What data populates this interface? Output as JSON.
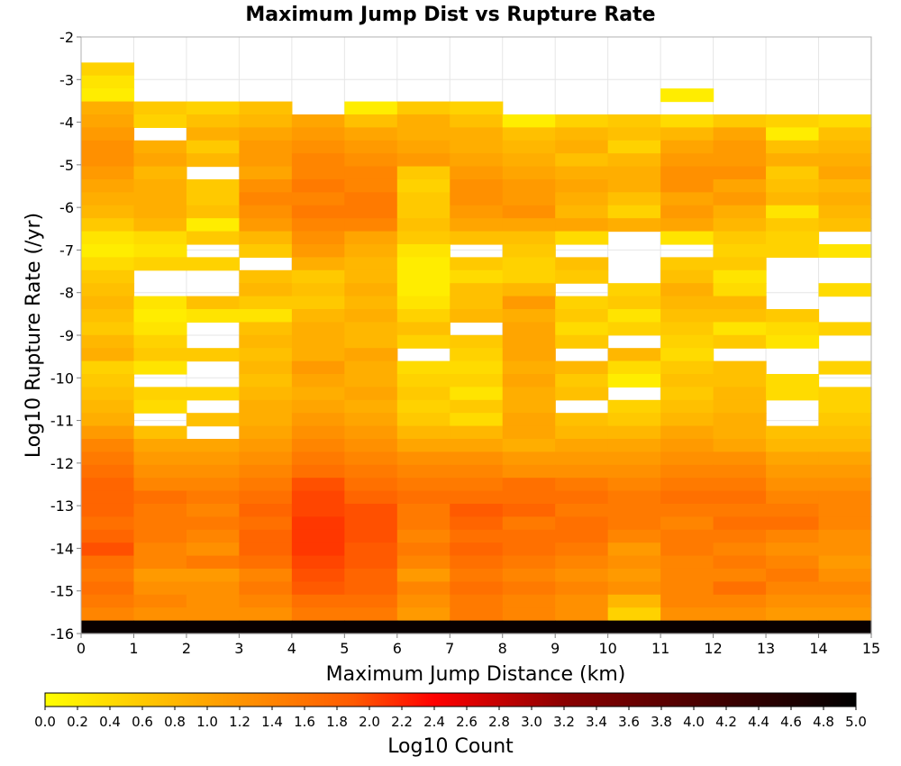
{
  "chart_data": {
    "type": "heatmap",
    "title": "Maximum Jump Dist vs Rupture Rate",
    "xlabel": "Maximum Jump Distance (km)",
    "ylabel": "Log10 Rupture Rate (/yr)",
    "colorbar_label": "Log10 Count",
    "xlim": [
      0,
      15
    ],
    "ylim": [
      -16,
      -2
    ],
    "x_ticks": [
      "0",
      "1",
      "2",
      "3",
      "4",
      "5",
      "6",
      "7",
      "8",
      "9",
      "10",
      "11",
      "12",
      "13",
      "14",
      "15"
    ],
    "y_ticks": [
      "-2",
      "-3",
      "-4",
      "-5",
      "-6",
      "-7",
      "-8",
      "-9",
      "-10",
      "-11",
      "-12",
      "-13",
      "-14",
      "-15",
      "-16"
    ],
    "colorbar_ticks": [
      "0.0",
      "0.2",
      "0.4",
      "0.6",
      "0.8",
      "1.0",
      "1.2",
      "1.4",
      "1.6",
      "1.8",
      "2.0",
      "2.2",
      "2.4",
      "2.6",
      "2.8",
      "3.0",
      "3.2",
      "3.4",
      "3.6",
      "3.8",
      "4.0",
      "4.2",
      "4.4",
      "4.6",
      "4.8",
      "5.0"
    ],
    "colorscale": {
      "min": 0,
      "max": 5,
      "stops": [
        "#ffff00",
        "#ffa500",
        "#ff4500",
        "#ff0000",
        "#8b0000",
        "#000000"
      ]
    },
    "grid": true,
    "x_bin_width": 1,
    "y_bin_height": 0.2857,
    "rows_top_to_bottom_note": "rows ordered from log10 rate -2.6 (top) down to -16 (bottom); null = empty bin",
    "rows": [
      [
        0.5,
        null,
        null,
        null,
        null,
        null,
        null,
        null,
        null,
        null,
        null,
        null,
        null,
        null,
        null
      ],
      [
        0.3,
        null,
        null,
        null,
        null,
        null,
        null,
        null,
        null,
        null,
        null,
        null,
        null,
        null,
        null
      ],
      [
        0.2,
        null,
        null,
        null,
        null,
        null,
        null,
        null,
        null,
        null,
        null,
        0.2,
        null,
        null,
        null
      ],
      [
        0.9,
        0.6,
        0.5,
        0.7,
        null,
        0.2,
        0.6,
        0.5,
        null,
        null,
        null,
        null,
        null,
        null,
        null
      ],
      [
        1.0,
        0.5,
        0.7,
        0.8,
        1.0,
        0.7,
        0.9,
        0.7,
        0.2,
        0.5,
        0.6,
        0.4,
        0.6,
        0.5,
        0.4
      ],
      [
        1.1,
        null,
        0.9,
        1.0,
        1.1,
        1.0,
        0.9,
        0.9,
        0.7,
        0.8,
        0.7,
        0.8,
        1.0,
        0.2,
        0.7
      ],
      [
        1.2,
        0.9,
        0.6,
        1.1,
        1.2,
        1.1,
        1.0,
        0.9,
        0.8,
        0.9,
        0.5,
        1.0,
        1.1,
        0.7,
        0.8
      ],
      [
        1.2,
        1.0,
        0.8,
        1.1,
        1.3,
        1.2,
        1.1,
        1.0,
        0.9,
        0.7,
        0.8,
        1.1,
        1.1,
        0.9,
        0.9
      ],
      [
        1.1,
        0.8,
        null,
        1.0,
        1.3,
        1.3,
        0.6,
        1.1,
        1.0,
        0.9,
        0.9,
        1.2,
        1.2,
        0.6,
        1.0
      ],
      [
        1.0,
        0.9,
        0.6,
        1.2,
        1.4,
        1.3,
        0.5,
        1.2,
        1.1,
        1.0,
        0.9,
        1.2,
        1.0,
        0.7,
        0.8
      ],
      [
        0.9,
        0.9,
        0.6,
        1.3,
        1.3,
        1.4,
        0.6,
        1.2,
        1.1,
        0.9,
        0.7,
        1.0,
        1.1,
        0.8,
        0.9
      ],
      [
        0.8,
        0.9,
        0.7,
        1.2,
        1.4,
        1.4,
        0.6,
        1.1,
        1.2,
        0.8,
        0.5,
        1.1,
        0.9,
        0.3,
        0.8
      ],
      [
        0.6,
        0.8,
        0.2,
        1.1,
        1.3,
        1.3,
        0.7,
        1.0,
        1.0,
        1.0,
        0.9,
        1.0,
        0.8,
        0.6,
        0.7
      ],
      [
        0.3,
        0.4,
        0.6,
        0.8,
        1.2,
        1.0,
        0.6,
        0.7,
        0.7,
        0.4,
        null,
        0.3,
        0.6,
        0.5,
        null
      ],
      [
        0.2,
        0.3,
        null,
        0.6,
        1.1,
        0.9,
        0.3,
        null,
        0.6,
        null,
        null,
        null,
        0.5,
        0.5,
        0.3
      ],
      [
        0.4,
        0.5,
        0.5,
        null,
        0.9,
        0.8,
        0.2,
        0.6,
        0.5,
        0.7,
        null,
        0.6,
        0.6,
        null,
        null
      ],
      [
        0.6,
        null,
        null,
        0.7,
        0.6,
        0.8,
        0.2,
        0.4,
        0.5,
        0.6,
        null,
        0.7,
        0.3,
        null,
        null
      ],
      [
        0.7,
        null,
        null,
        0.8,
        0.7,
        0.9,
        0.2,
        0.7,
        0.8,
        null,
        0.5,
        0.9,
        0.4,
        null,
        0.4
      ],
      [
        0.8,
        0.3,
        0.7,
        0.6,
        0.6,
        0.8,
        0.3,
        0.7,
        1.1,
        0.5,
        0.6,
        0.8,
        0.8,
        null,
        null
      ],
      [
        0.7,
        0.2,
        0.3,
        0.3,
        0.8,
        0.9,
        0.5,
        0.8,
        0.9,
        0.6,
        0.3,
        0.7,
        0.7,
        0.6,
        null
      ],
      [
        0.6,
        0.3,
        null,
        0.7,
        0.9,
        0.8,
        0.7,
        null,
        1.0,
        0.4,
        0.5,
        0.6,
        0.3,
        0.4,
        0.5
      ],
      [
        0.8,
        0.5,
        null,
        0.8,
        0.9,
        0.8,
        0.5,
        0.6,
        1.0,
        0.6,
        null,
        0.5,
        0.6,
        0.3,
        null
      ],
      [
        0.9,
        0.6,
        0.6,
        0.7,
        0.9,
        1.0,
        null,
        0.5,
        1.0,
        null,
        0.8,
        0.4,
        null,
        null,
        null
      ],
      [
        0.5,
        0.3,
        null,
        0.8,
        1.1,
        0.9,
        0.4,
        0.4,
        0.9,
        0.8,
        0.4,
        0.6,
        0.7,
        null,
        0.5
      ],
      [
        0.6,
        null,
        null,
        0.7,
        1.0,
        0.9,
        0.5,
        0.5,
        1.0,
        0.6,
        0.2,
        0.7,
        0.7,
        0.4,
        null
      ],
      [
        0.7,
        0.5,
        0.5,
        0.8,
        0.9,
        1.0,
        0.6,
        0.3,
        0.9,
        0.7,
        null,
        0.6,
        0.8,
        0.4,
        0.5
      ],
      [
        0.8,
        0.4,
        null,
        0.9,
        1.0,
        0.9,
        0.5,
        0.6,
        0.9,
        null,
        0.5,
        0.7,
        0.8,
        null,
        0.5
      ],
      [
        0.9,
        null,
        0.7,
        0.9,
        1.1,
        1.0,
        0.6,
        0.4,
        1.0,
        0.7,
        0.6,
        0.8,
        0.9,
        null,
        0.6
      ],
      [
        1.1,
        0.7,
        null,
        1.0,
        1.2,
        1.1,
        0.8,
        0.8,
        1.0,
        0.8,
        0.8,
        1.0,
        0.9,
        0.7,
        0.7
      ],
      [
        1.3,
        1.0,
        1.0,
        1.1,
        1.3,
        1.2,
        1.0,
        1.0,
        0.9,
        1.0,
        1.0,
        1.1,
        1.0,
        0.8,
        0.8
      ],
      [
        1.4,
        1.1,
        1.1,
        1.2,
        1.4,
        1.3,
        1.2,
        1.2,
        1.1,
        1.1,
        1.1,
        1.2,
        1.2,
        1.0,
        1.0
      ],
      [
        1.5,
        1.2,
        1.2,
        1.3,
        1.5,
        1.4,
        1.3,
        1.3,
        1.2,
        1.2,
        1.2,
        1.3,
        1.3,
        1.1,
        1.1
      ],
      [
        1.6,
        1.3,
        1.3,
        1.4,
        1.8,
        1.5,
        1.4,
        1.4,
        1.5,
        1.4,
        1.3,
        1.4,
        1.4,
        1.2,
        1.2
      ],
      [
        1.6,
        1.5,
        1.4,
        1.5,
        1.9,
        1.6,
        1.5,
        1.5,
        1.5,
        1.5,
        1.4,
        1.5,
        1.5,
        1.3,
        1.3
      ],
      [
        1.6,
        1.4,
        1.3,
        1.6,
        1.9,
        1.8,
        1.4,
        1.7,
        1.6,
        1.4,
        1.4,
        1.4,
        1.4,
        1.4,
        1.3
      ],
      [
        1.5,
        1.4,
        1.4,
        1.5,
        2.0,
        1.8,
        1.4,
        1.6,
        1.4,
        1.5,
        1.4,
        1.3,
        1.5,
        1.5,
        1.3
      ],
      [
        1.6,
        1.4,
        1.3,
        1.6,
        2.0,
        1.8,
        1.3,
        1.5,
        1.5,
        1.5,
        1.3,
        1.4,
        1.4,
        1.3,
        1.2
      ],
      [
        1.8,
        1.3,
        1.2,
        1.6,
        2.0,
        1.7,
        1.4,
        1.6,
        1.5,
        1.4,
        1.1,
        1.4,
        1.3,
        1.2,
        1.2
      ],
      [
        1.5,
        1.3,
        1.4,
        1.5,
        1.9,
        1.7,
        1.3,
        1.5,
        1.4,
        1.3,
        1.2,
        1.3,
        1.4,
        1.3,
        1.1
      ],
      [
        1.4,
        1.1,
        1.1,
        1.3,
        1.8,
        1.6,
        1.1,
        1.4,
        1.3,
        1.2,
        1.1,
        1.3,
        1.3,
        1.4,
        1.2
      ],
      [
        1.5,
        1.2,
        1.2,
        1.4,
        1.7,
        1.6,
        1.3,
        1.5,
        1.4,
        1.3,
        1.2,
        1.3,
        1.5,
        1.3,
        1.3
      ],
      [
        1.4,
        1.3,
        1.2,
        1.3,
        1.5,
        1.5,
        1.2,
        1.4,
        1.3,
        1.2,
        0.8,
        1.3,
        1.3,
        1.2,
        1.2
      ],
      [
        1.3,
        1.2,
        1.2,
        1.2,
        1.4,
        1.4,
        1.1,
        1.4,
        1.3,
        1.2,
        0.5,
        1.2,
        1.2,
        1.1,
        1.1
      ],
      [
        4.9,
        4.9,
        4.9,
        4.9,
        4.9,
        4.9,
        4.9,
        4.9,
        4.9,
        4.9,
        4.9,
        4.9,
        4.9,
        4.9,
        4.9
      ]
    ]
  }
}
